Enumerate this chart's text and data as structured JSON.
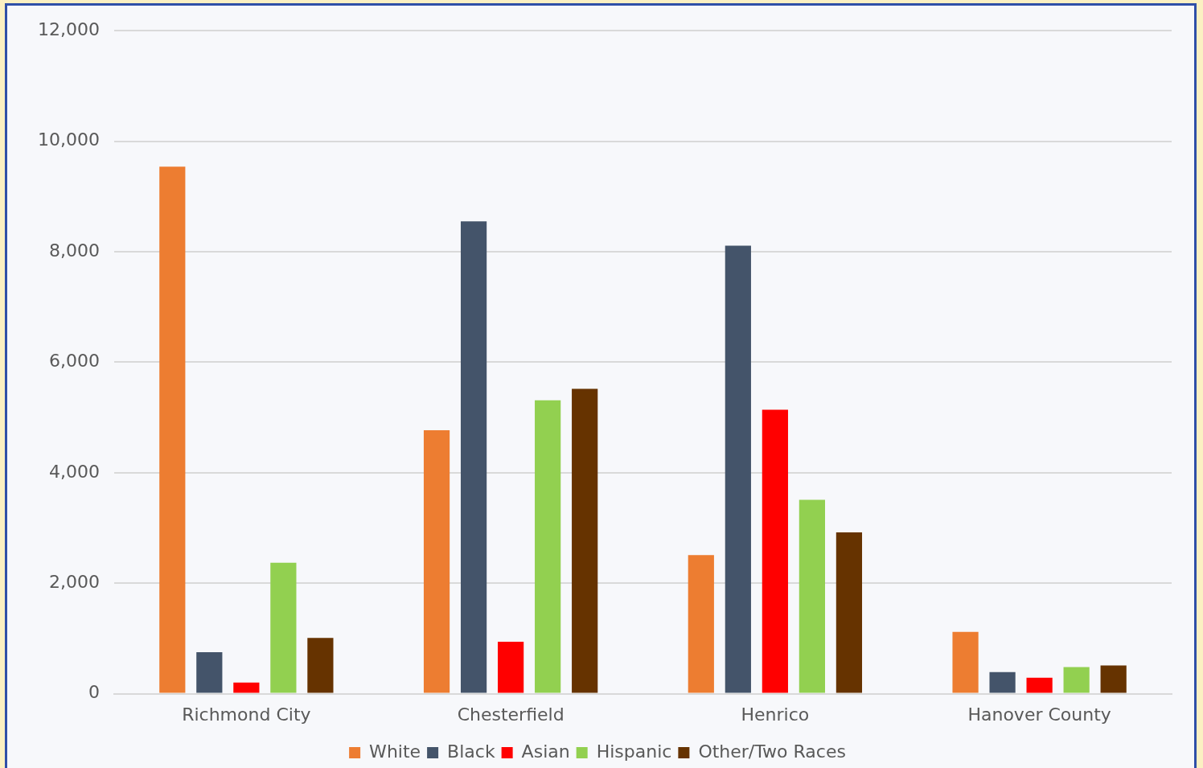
{
  "chart_data": {
    "type": "bar",
    "categories": [
      "Richmond City",
      "Chesterfield",
      "Henrico",
      "Hanover County"
    ],
    "series": [
      {
        "name": "White",
        "color": "#ed7d31",
        "values": [
          9540,
          4770,
          2510,
          1120
        ]
      },
      {
        "name": "Black",
        "color": "#44546a",
        "values": [
          750,
          8550,
          8110,
          390
        ]
      },
      {
        "name": "Asian",
        "color": "#ff0000",
        "values": [
          200,
          940,
          5140,
          290
        ]
      },
      {
        "name": "Hispanic",
        "color": "#92d050",
        "values": [
          2370,
          5310,
          3510,
          480
        ]
      },
      {
        "name": "Other/Two Races",
        "color": "#663300",
        "values": [
          1010,
          5520,
          2920,
          510
        ]
      }
    ],
    "ylim": [
      0,
      12000
    ],
    "yticks": [
      0,
      {
        "value": 2000,
        "label": "2,000"
      },
      {
        "value": 4000,
        "label": "4,000"
      },
      {
        "value": 6000,
        "label": "6,000"
      },
      {
        "value": 8000,
        "label": "8,000"
      },
      {
        "value": 10000,
        "label": "10,000"
      },
      {
        "value": 12000,
        "label": "12,000"
      }
    ],
    "grid": "y",
    "legend": "bottom"
  }
}
